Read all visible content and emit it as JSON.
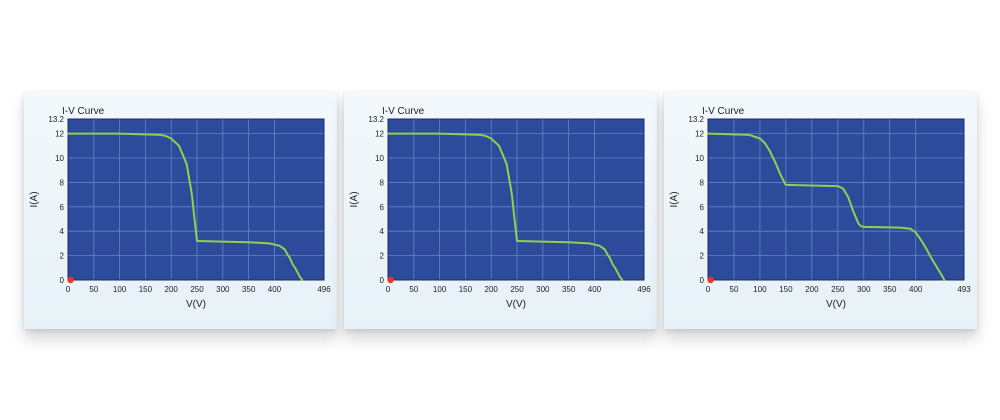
{
  "chart_data": [
    {
      "type": "line",
      "title": "I-V Curve",
      "xlabel": "V(V)",
      "ylabel": "I(A)",
      "xlim": [
        0,
        496
      ],
      "ylim": [
        0,
        13.2
      ],
      "x_ticks": [
        "0",
        "50",
        "100",
        "150",
        "200",
        "250",
        "300",
        "350",
        "400",
        "496"
      ],
      "y_ticks": [
        "0",
        "2",
        "4",
        "6",
        "8",
        "10",
        "12",
        "13.2"
      ],
      "grid": true,
      "colors": {
        "background": "#2e4a9a",
        "grid": "#5f86c8",
        "series": "#8fd14f",
        "marker": "#e8382f"
      },
      "series": [
        {
          "x": [
            0,
            100,
            180,
            190,
            200,
            215,
            230,
            240,
            245,
            250,
            300,
            350,
            390,
            410,
            420,
            425,
            430,
            435,
            440,
            445,
            450,
            454
          ],
          "y": [
            12.0,
            12.0,
            11.9,
            11.8,
            11.6,
            11.0,
            9.5,
            7.0,
            5.0,
            3.2,
            3.15,
            3.1,
            3.0,
            2.8,
            2.5,
            2.1,
            1.8,
            1.3,
            1.0,
            0.6,
            0.2,
            0.0
          ]
        }
      ],
      "marker_point": {
        "x": 5,
        "y": 0
      }
    },
    {
      "type": "line",
      "title": "I-V Curve",
      "xlabel": "V(V)",
      "ylabel": "I(A)",
      "xlim": [
        0,
        496
      ],
      "ylim": [
        0,
        13.2
      ],
      "x_ticks": [
        "0",
        "50",
        "100",
        "150",
        "200",
        "250",
        "300",
        "350",
        "400",
        "496"
      ],
      "y_ticks": [
        "0",
        "2",
        "4",
        "6",
        "8",
        "10",
        "12",
        "13.2"
      ],
      "grid": true,
      "colors": {
        "background": "#2e4a9a",
        "grid": "#5f86c8",
        "series": "#8fd14f",
        "marker": "#e8382f"
      },
      "series": [
        {
          "x": [
            0,
            100,
            180,
            190,
            200,
            215,
            230,
            240,
            245,
            250,
            300,
            350,
            390,
            410,
            420,
            425,
            430,
            435,
            440,
            445,
            450,
            454
          ],
          "y": [
            12.0,
            12.0,
            11.9,
            11.8,
            11.6,
            11.0,
            9.5,
            7.0,
            5.0,
            3.2,
            3.15,
            3.1,
            3.0,
            2.8,
            2.5,
            2.1,
            1.8,
            1.3,
            1.0,
            0.6,
            0.2,
            0.0
          ]
        }
      ],
      "marker_point": {
        "x": 5,
        "y": 0
      }
    },
    {
      "type": "line",
      "title": "I-V Curve",
      "xlabel": "V(V)",
      "ylabel": "I(A)",
      "xlim": [
        0,
        493
      ],
      "ylim": [
        0,
        13.2
      ],
      "x_ticks": [
        "0",
        "50",
        "100",
        "150",
        "200",
        "250",
        "300",
        "350",
        "400",
        "493"
      ],
      "y_ticks": [
        "0",
        "2",
        "4",
        "6",
        "8",
        "10",
        "12",
        "13.2"
      ],
      "grid": true,
      "colors": {
        "background": "#2e4a9a",
        "grid": "#5f86c8",
        "series": "#8fd14f",
        "marker": "#e8382f"
      },
      "series": [
        {
          "x": [
            0,
            80,
            100,
            110,
            120,
            130,
            140,
            148,
            150,
            250,
            260,
            270,
            280,
            290,
            295,
            300,
            370,
            390,
            400,
            410,
            420,
            430,
            440,
            450,
            455
          ],
          "y": [
            12.0,
            11.9,
            11.6,
            11.2,
            10.5,
            9.6,
            8.6,
            7.9,
            7.8,
            7.7,
            7.5,
            6.8,
            5.6,
            4.6,
            4.4,
            4.35,
            4.3,
            4.2,
            3.9,
            3.3,
            2.6,
            1.8,
            1.1,
            0.4,
            0.0
          ]
        }
      ],
      "marker_point": {
        "x": 5,
        "y": 0
      }
    }
  ]
}
